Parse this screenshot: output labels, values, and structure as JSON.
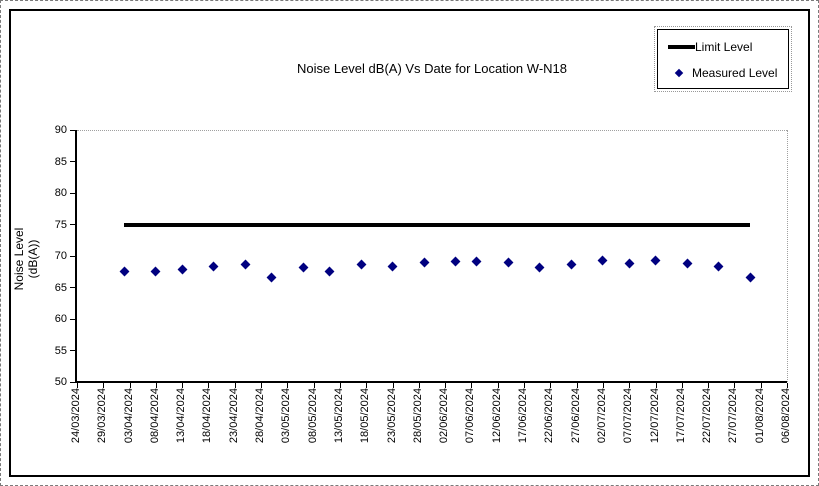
{
  "chart_data": {
    "type": "scatter",
    "title": "Noise Level dB(A) Vs Date for Location W-N18",
    "ylabel_lines": [
      "Noise Level",
      "(dB(A))"
    ],
    "ylim": [
      50,
      90
    ],
    "ytick_step": 5,
    "ytick_labels": [
      "90",
      "85",
      "80",
      "75",
      "70",
      "65",
      "60",
      "55",
      "50"
    ],
    "x_axis": {
      "start_date": "24/03/2024",
      "end_date": "06/08/2024",
      "tick_interval_days": 5,
      "tick_labels": [
        "24/03/2024",
        "29/03/2024",
        "03/04/2024",
        "08/04/2024",
        "13/04/2024",
        "18/04/2024",
        "23/04/2024",
        "28/04/2024",
        "03/05/2024",
        "08/05/2024",
        "13/05/2024",
        "18/05/2024",
        "23/05/2024",
        "28/05/2024",
        "02/06/2024",
        "07/06/2024",
        "12/06/2024",
        "17/06/2024",
        "22/06/2024",
        "27/06/2024",
        "02/07/2024",
        "07/07/2024",
        "12/07/2024",
        "17/07/2024",
        "22/07/2024",
        "27/07/2024",
        "01/08/2024",
        "06/08/2024"
      ]
    },
    "grid": {
      "horizontal": false,
      "vertical": false,
      "plot_border_top_right": "dotted"
    },
    "legend": {
      "position": "top-right",
      "entries": [
        {
          "label": "Limit Level",
          "marker": "line",
          "color": "#000000"
        },
        {
          "label": "Measured Level",
          "marker": "diamond",
          "color": "#000080"
        }
      ]
    },
    "series": [
      {
        "name": "Limit Level",
        "type": "line",
        "color": "#000000",
        "value": 75,
        "start_date": "02/04/2024",
        "end_date": "30/07/2024"
      },
      {
        "name": "Measured Level",
        "type": "scatter",
        "marker": "diamond",
        "color": "#000080",
        "points": [
          {
            "date": "02/04/2024",
            "value": 67.6
          },
          {
            "date": "08/04/2024",
            "value": 67.5
          },
          {
            "date": "13/04/2024",
            "value": 67.9
          },
          {
            "date": "19/04/2024",
            "value": 68.3
          },
          {
            "date": "25/04/2024",
            "value": 68.7
          },
          {
            "date": "30/04/2024",
            "value": 66.6
          },
          {
            "date": "06/05/2024",
            "value": 68.2
          },
          {
            "date": "11/05/2024",
            "value": 67.6
          },
          {
            "date": "17/05/2024",
            "value": 68.7
          },
          {
            "date": "23/05/2024",
            "value": 68.4
          },
          {
            "date": "29/05/2024",
            "value": 68.9
          },
          {
            "date": "04/06/2024",
            "value": 69.1
          },
          {
            "date": "08/06/2024",
            "value": 69.2
          },
          {
            "date": "14/06/2024",
            "value": 68.9
          },
          {
            "date": "20/06/2024",
            "value": 68.1
          },
          {
            "date": "26/06/2024",
            "value": 68.6
          },
          {
            "date": "02/07/2024",
            "value": 69.3
          },
          {
            "date": "07/07/2024",
            "value": 68.8
          },
          {
            "date": "12/07/2024",
            "value": 69.3
          },
          {
            "date": "18/07/2024",
            "value": 68.8
          },
          {
            "date": "24/07/2024",
            "value": 68.4
          },
          {
            "date": "30/07/2024",
            "value": 66.6
          }
        ]
      }
    ]
  }
}
